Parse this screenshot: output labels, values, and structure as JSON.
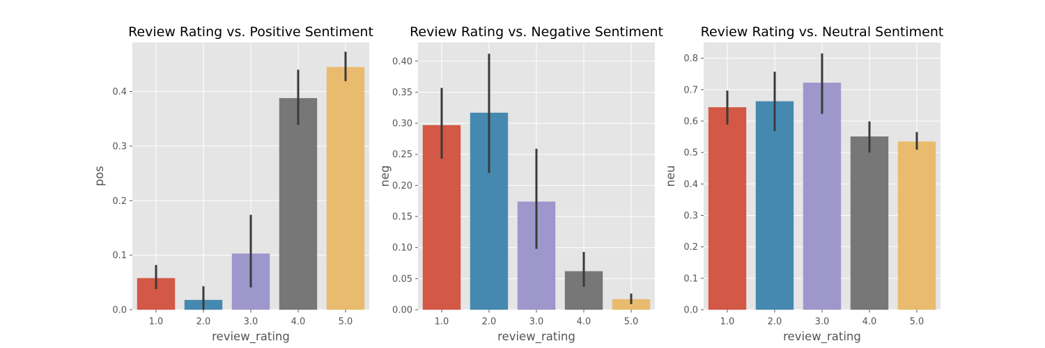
{
  "colors": {
    "background": "#e5e5e5",
    "grid": "#ffffff",
    "errorbar": "#3a3a3a",
    "bars": [
      "#d35845",
      "#4689b0",
      "#9d97cc",
      "#777777",
      "#e9bb6e"
    ]
  },
  "chart_data": [
    {
      "type": "bar",
      "title": "Review Rating vs. Positive Sentiment",
      "xlabel": "review_rating",
      "ylabel": "pos",
      "categories": [
        "1.0",
        "2.0",
        "3.0",
        "4.0",
        "5.0"
      ],
      "values": [
        0.058,
        0.018,
        0.103,
        0.388,
        0.445
      ],
      "errors": [
        [
          0.038,
          0.082
        ],
        [
          0.0,
          0.043
        ],
        [
          0.041,
          0.174
        ],
        [
          0.339,
          0.44
        ],
        [
          0.419,
          0.473
        ]
      ],
      "ylim": [
        0,
        0.49
      ],
      "yticks": [
        0,
        0.1,
        0.2,
        0.3,
        0.4
      ],
      "ytick_labels": [
        "0.0",
        "0.1",
        "0.2",
        "0.3",
        "0.4"
      ],
      "grid": true
    },
    {
      "type": "bar",
      "title": "Review Rating vs. Negative Sentiment",
      "xlabel": "review_rating",
      "ylabel": "neg",
      "categories": [
        "1.0",
        "2.0",
        "3.0",
        "4.0",
        "5.0"
      ],
      "values": [
        0.297,
        0.317,
        0.174,
        0.062,
        0.017
      ],
      "errors": [
        [
          0.243,
          0.357
        ],
        [
          0.22,
          0.412
        ],
        [
          0.098,
          0.259
        ],
        [
          0.037,
          0.093
        ],
        [
          0.009,
          0.026
        ]
      ],
      "ylim": [
        0,
        0.43
      ],
      "yticks": [
        0,
        0.05,
        0.1,
        0.15,
        0.2,
        0.25,
        0.3,
        0.35,
        0.4
      ],
      "ytick_labels": [
        "0.00",
        "0.05",
        "0.10",
        "0.15",
        "0.20",
        "0.25",
        "0.30",
        "0.35",
        "0.40"
      ],
      "grid": true
    },
    {
      "type": "bar",
      "title": "Review Rating vs. Neutral Sentiment",
      "xlabel": "review_rating",
      "ylabel": "neu",
      "categories": [
        "1.0",
        "2.0",
        "3.0",
        "4.0",
        "5.0"
      ],
      "values": [
        0.644,
        0.663,
        0.722,
        0.551,
        0.535
      ],
      "errors": [
        [
          0.589,
          0.697
        ],
        [
          0.568,
          0.757
        ],
        [
          0.623,
          0.815
        ],
        [
          0.5,
          0.599
        ],
        [
          0.509,
          0.565
        ]
      ],
      "ylim": [
        0,
        0.85
      ],
      "yticks": [
        0,
        0.1,
        0.2,
        0.3,
        0.4,
        0.5,
        0.6,
        0.7,
        0.8
      ],
      "ytick_labels": [
        "0.0",
        "0.1",
        "0.2",
        "0.3",
        "0.4",
        "0.5",
        "0.6",
        "0.7",
        "0.8"
      ],
      "grid": true
    }
  ]
}
